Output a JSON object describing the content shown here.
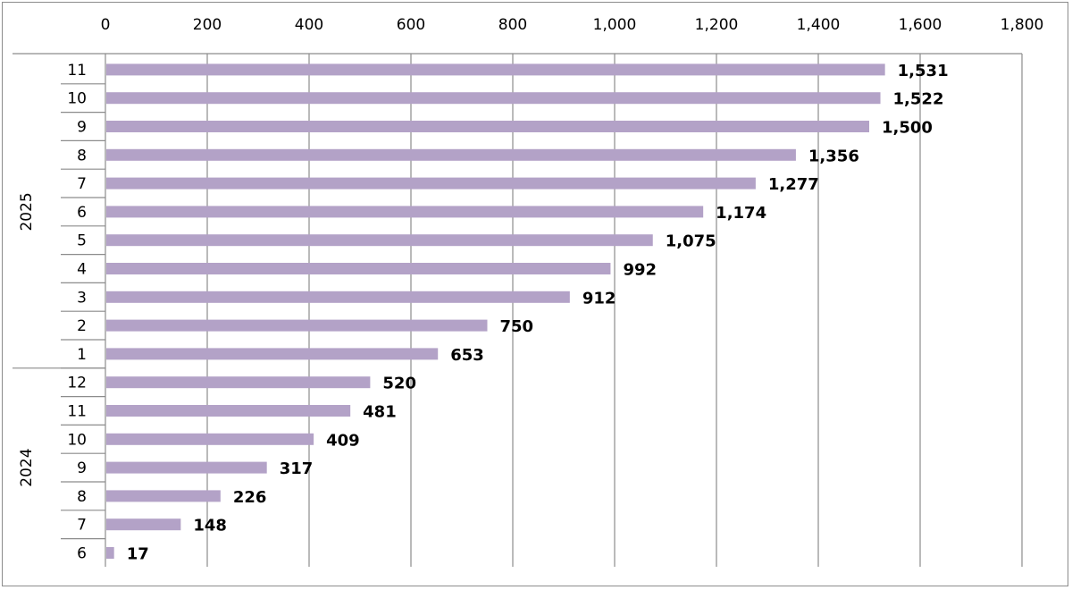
{
  "chart_data": {
    "type": "bar",
    "orientation": "horizontal",
    "title": "",
    "xlabel": "",
    "ylabel": "",
    "xlim": [
      0,
      1800
    ],
    "x_ticks": [
      0,
      200,
      400,
      600,
      800,
      1000,
      1200,
      1400,
      1600,
      1800
    ],
    "x_tick_labels": [
      "0",
      "200",
      "400",
      "600",
      "800",
      "1,000",
      "1,200",
      "1,400",
      "1,600",
      "1,800"
    ],
    "grid": true,
    "bar_color": "#b3a2c7",
    "groups": [
      {
        "label": "2025",
        "categories": [
          "11",
          "10",
          "9",
          "8",
          "7",
          "6",
          "5",
          "4",
          "3",
          "2",
          "1"
        ]
      },
      {
        "label": "2024",
        "categories": [
          "12",
          "11",
          "10",
          "9",
          "8",
          "7",
          "6"
        ]
      }
    ],
    "categories": [
      "11",
      "10",
      "9",
      "8",
      "7",
      "6",
      "5",
      "4",
      "3",
      "2",
      "1",
      "12",
      "11",
      "10",
      "9",
      "8",
      "7",
      "6"
    ],
    "values": [
      1531,
      1522,
      1500,
      1356,
      1277,
      1174,
      1075,
      992,
      912,
      750,
      653,
      520,
      481,
      409,
      317,
      226,
      148,
      17
    ],
    "data_labels": [
      "1,531",
      "1,522",
      "1,500",
      "1,356",
      "1,277",
      "1,174",
      "1,075",
      "992",
      "912",
      "750",
      "653",
      "520",
      "481",
      "409",
      "317",
      "226",
      "148",
      "17"
    ]
  }
}
